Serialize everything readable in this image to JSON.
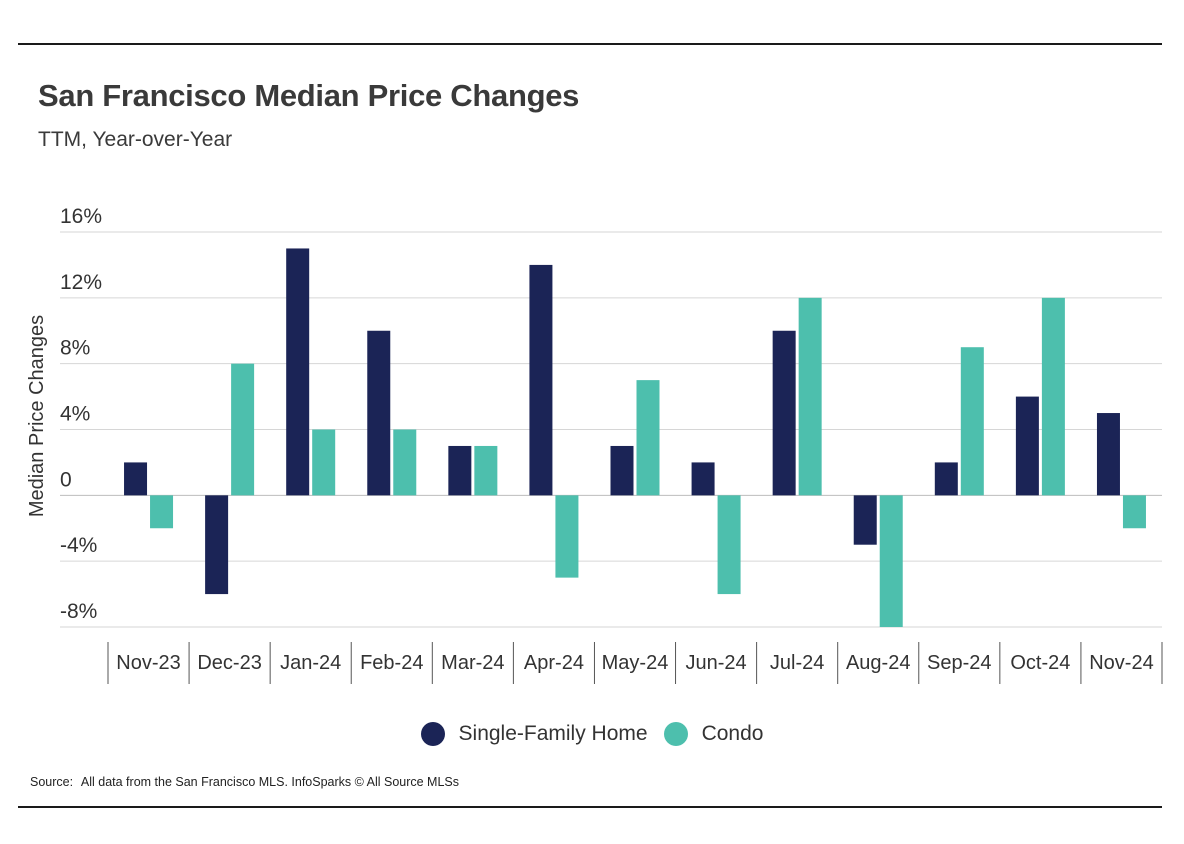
{
  "title": "San Francisco Median Price Changes",
  "subtitle": "TTM, Year-over-Year",
  "legend": [
    {
      "label": "Single-Family Home",
      "color": "#1b2456"
    },
    {
      "label": "Condo",
      "color": "#4dbfad"
    }
  ],
  "source": {
    "prefix": "Source:",
    "text": "All data from the San Francisco MLS. InfoSparks © All Source MLSs"
  },
  "chart_data": {
    "type": "bar",
    "title": "San Francisco Median Price Changes",
    "subtitle": "TTM, Year-over-Year",
    "xlabel": "",
    "ylabel": "Median Price Changes",
    "ylim": [
      -8,
      16
    ],
    "yticks": [
      -8,
      -4,
      0,
      4,
      8,
      12,
      16
    ],
    "ytick_labels": [
      "-8%",
      "-4%",
      "0",
      "4%",
      "8%",
      "12%",
      "16%"
    ],
    "grid": true,
    "legend_position": "bottom-center",
    "categories": [
      "Nov-23",
      "Dec-23",
      "Jan-24",
      "Feb-24",
      "Mar-24",
      "Apr-24",
      "May-24",
      "Jun-24",
      "Jul-24",
      "Aug-24",
      "Sep-24",
      "Oct-24",
      "Nov-24"
    ],
    "series": [
      {
        "name": "Single-Family Home",
        "color": "#1b2456",
        "values": [
          2,
          -6,
          15,
          10,
          3,
          14,
          3,
          2,
          10,
          -3,
          2,
          6,
          5
        ]
      },
      {
        "name": "Condo",
        "color": "#4dbfad",
        "values": [
          -2,
          8,
          4,
          4,
          3,
          -5,
          7,
          -6,
          12,
          -8,
          9,
          12,
          -2
        ]
      }
    ]
  }
}
